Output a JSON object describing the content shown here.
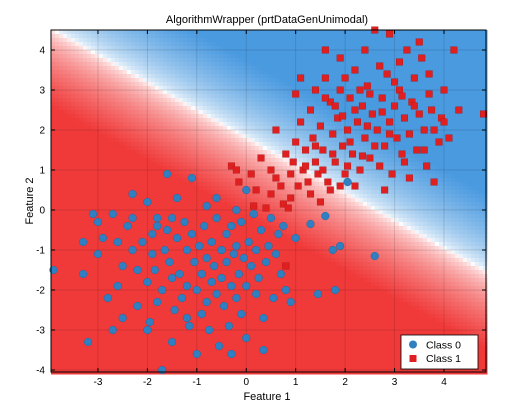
{
  "chart_data": {
    "type": "scatter",
    "title": "AlgorithmWrapper (prtDataGenUnimodal)",
    "xlabel": "Feature 1",
    "ylabel": "Feature 2",
    "xlim": [
      -3.95,
      4.85
    ],
    "ylim": [
      -4.05,
      4.5
    ],
    "xticks": [
      -3,
      -2,
      -1,
      0,
      1,
      2,
      3,
      4
    ],
    "yticks": [
      -4,
      -3,
      -2,
      -1,
      0,
      1,
      2,
      3,
      4
    ],
    "xtick_labels": [
      "-3",
      "-2",
      "-1",
      "0",
      "1",
      "2",
      "3",
      "4"
    ],
    "ytick_labels": [
      "-4",
      "-3",
      "-2",
      "-1",
      "0",
      "1",
      "2",
      "3",
      "4"
    ],
    "grid": true,
    "legend_position": "bottom-right",
    "background": {
      "type": "decision_surface",
      "boundary": "line through approximately (-3.9, 4.5) and (4.8, -1.5)",
      "color_class0": "#4a9ae0",
      "color_class1": "#f03a3a"
    },
    "series": [
      {
        "name": "Class 0",
        "marker": "circle",
        "color": "#2f7fc1",
        "points": [
          [
            -3.9,
            -1.5
          ],
          [
            -3.3,
            -0.8
          ],
          [
            -3.0,
            -0.3
          ],
          [
            -3.1,
            -0.1
          ],
          [
            -3.0,
            -1.1
          ],
          [
            -3.3,
            -1.6
          ],
          [
            -3.2,
            -3.3
          ],
          [
            -2.9,
            -0.7
          ],
          [
            -2.7,
            -0.1
          ],
          [
            -2.6,
            -0.8
          ],
          [
            -2.5,
            -1.4
          ],
          [
            -2.4,
            -0.4
          ],
          [
            -2.3,
            0.4
          ],
          [
            -2.3,
            -1.0
          ],
          [
            -2.2,
            -1.5
          ],
          [
            -2.2,
            -2.4
          ],
          [
            -2.1,
            -0.8
          ],
          [
            -2.0,
            0.2
          ],
          [
            -2.0,
            -1.8
          ],
          [
            -1.9,
            -0.6
          ],
          [
            -1.9,
            -1.1
          ],
          [
            -1.85,
            -1.5
          ],
          [
            -1.8,
            -2.3
          ],
          [
            -1.8,
            -0.2
          ],
          [
            -1.7,
            -4.0
          ],
          [
            -1.7,
            -2.0
          ],
          [
            -1.65,
            -1.0
          ],
          [
            -1.6,
            -0.5
          ],
          [
            -1.55,
            -1.3
          ],
          [
            -1.5,
            -1.7
          ],
          [
            -1.5,
            -0.2
          ],
          [
            -1.45,
            -2.5
          ],
          [
            -1.4,
            -0.7
          ],
          [
            -1.35,
            -1.6
          ],
          [
            -1.3,
            -2.2
          ],
          [
            -1.25,
            -0.3
          ],
          [
            -1.2,
            -1.0
          ],
          [
            -1.2,
            -1.9
          ],
          [
            -1.15,
            -2.9
          ],
          [
            -1.1,
            -0.6
          ],
          [
            -1.05,
            -1.3
          ],
          [
            -1.0,
            -2.0
          ],
          [
            -0.95,
            -0.9
          ],
          [
            -0.9,
            -1.6
          ],
          [
            -0.9,
            -2.6
          ],
          [
            -0.85,
            -0.4
          ],
          [
            -0.8,
            -1.2
          ],
          [
            -0.8,
            -2.3
          ],
          [
            -0.75,
            -3.0
          ],
          [
            -0.7,
            -1.8
          ],
          [
            -0.7,
            -0.8
          ],
          [
            -0.65,
            -1.4
          ],
          [
            -0.6,
            -2.1
          ],
          [
            -0.6,
            -0.2
          ],
          [
            -0.55,
            -3.4
          ],
          [
            -0.5,
            -1.0
          ],
          [
            -0.5,
            -1.7
          ],
          [
            -0.45,
            -2.4
          ],
          [
            -0.4,
            -0.6
          ],
          [
            -0.4,
            -1.3
          ],
          [
            -0.35,
            -2.9
          ],
          [
            -0.3,
            -1.9
          ],
          [
            -0.3,
            -0.4
          ],
          [
            -0.25,
            -1.1
          ],
          [
            -0.2,
            -2.2
          ],
          [
            -0.2,
            -0.9
          ],
          [
            -0.15,
            -1.6
          ],
          [
            -0.1,
            -0.3
          ],
          [
            -0.1,
            -2.6
          ],
          [
            -0.05,
            -1.2
          ],
          [
            0.0,
            -3.2
          ],
          [
            0.0,
            -1.9
          ],
          [
            0.05,
            -0.8
          ],
          [
            0.1,
            -1.4
          ],
          [
            0.15,
            -0.1
          ],
          [
            0.2,
            -2.1
          ],
          [
            0.2,
            -1.0
          ],
          [
            0.25,
            -1.7
          ],
          [
            0.3,
            -0.5
          ],
          [
            0.35,
            -2.7
          ],
          [
            0.4,
            -1.3
          ],
          [
            0.45,
            -0.9
          ],
          [
            0.5,
            -0.2
          ],
          [
            0.55,
            -2.2
          ],
          [
            0.6,
            -1.1
          ],
          [
            0.65,
            -0.6
          ],
          [
            0.7,
            -1.6
          ],
          [
            0.75,
            -0.4
          ],
          [
            0.8,
            -2.0
          ],
          [
            1.0,
            -0.7
          ],
          [
            1.3,
            -0.35
          ],
          [
            1.6,
            -0.15
          ],
          [
            1.75,
            -1.0
          ],
          [
            1.9,
            -0.9
          ],
          [
            2.05,
            0.7
          ],
          [
            2.6,
            -1.15
          ],
          [
            -2.8,
            -2.2
          ],
          [
            -1.6,
            0.9
          ],
          [
            -2.3,
            -0.2
          ],
          [
            -1.95,
            -2.8
          ],
          [
            -1.1,
            0.8
          ],
          [
            -0.6,
            0.3
          ],
          [
            -0.2,
            0.0
          ],
          [
            0.0,
            0.5
          ],
          [
            -2.6,
            -1.9
          ],
          [
            -2.0,
            -3.0
          ],
          [
            -1.5,
            -3.3
          ],
          [
            -0.3,
            -3.6
          ],
          [
            0.9,
            -2.3
          ],
          [
            1.45,
            -2.1
          ],
          [
            1.8,
            -2.0
          ],
          [
            -2.7,
            -3.0
          ],
          [
            -1.0,
            -3.6
          ],
          [
            -0.8,
            0.1
          ],
          [
            -1.4,
            0.3
          ],
          [
            -1.8,
            -0.4
          ],
          [
            -2.5,
            -2.7
          ],
          [
            -1.2,
            -2.7
          ],
          [
            0.35,
            -3.5
          ]
        ]
      },
      {
        "name": "Class 1",
        "marker": "square",
        "color": "#e02020",
        "points": [
          [
            -0.3,
            1.1
          ],
          [
            -0.2,
            1.0
          ],
          [
            -0.15,
            0.7
          ],
          [
            0.1,
            0.9
          ],
          [
            0.15,
            0.1
          ],
          [
            0.2,
            0.5
          ],
          [
            0.3,
            1.3
          ],
          [
            0.4,
            0.05
          ],
          [
            0.5,
            0.4
          ],
          [
            0.6,
            0.8
          ],
          [
            0.75,
            0.15
          ],
          [
            0.8,
            -1.4
          ],
          [
            0.85,
            0.05
          ],
          [
            0.9,
            0.3
          ],
          [
            0.95,
            1.2
          ],
          [
            1.0,
            1.7
          ],
          [
            1.05,
            0.6
          ],
          [
            1.1,
            2.2
          ],
          [
            1.15,
            1.0
          ],
          [
            1.2,
            1.5
          ],
          [
            1.25,
            0.7
          ],
          [
            1.3,
            2.5
          ],
          [
            1.35,
            1.8
          ],
          [
            1.4,
            1.2
          ],
          [
            1.45,
            0.9
          ],
          [
            1.5,
            2.1
          ],
          [
            1.55,
            1.5
          ],
          [
            1.6,
            3.3
          ],
          [
            1.65,
            0.7
          ],
          [
            1.7,
            2.7
          ],
          [
            1.75,
            1.9
          ],
          [
            1.8,
            1.2
          ],
          [
            1.85,
            2.3
          ],
          [
            1.9,
            3.0
          ],
          [
            1.95,
            1.6
          ],
          [
            2.0,
            0.9
          ],
          [
            2.05,
            2.0
          ],
          [
            2.1,
            2.8
          ],
          [
            2.15,
            1.4
          ],
          [
            2.2,
            3.5
          ],
          [
            2.25,
            2.2
          ],
          [
            2.3,
            1.0
          ],
          [
            2.35,
            2.6
          ],
          [
            2.4,
            1.8
          ],
          [
            2.45,
            3.1
          ],
          [
            2.5,
            1.3
          ],
          [
            2.55,
            2.4
          ],
          [
            2.6,
            4.5
          ],
          [
            2.65,
            2.0
          ],
          [
            2.7,
            1.1
          ],
          [
            2.75,
            2.8
          ],
          [
            2.8,
            1.6
          ],
          [
            2.85,
            3.4
          ],
          [
            2.9,
            2.2
          ],
          [
            2.95,
            0.9
          ],
          [
            3.0,
            2.6
          ],
          [
            3.05,
            1.8
          ],
          [
            3.1,
            3.0
          ],
          [
            3.15,
            1.4
          ],
          [
            3.2,
            2.3
          ],
          [
            3.25,
            4.0
          ],
          [
            3.3,
            1.9
          ],
          [
            3.35,
            2.7
          ],
          [
            3.4,
            3.3
          ],
          [
            3.45,
            1.5
          ],
          [
            3.5,
            2.4
          ],
          [
            3.55,
            3.8
          ],
          [
            3.6,
            2.0
          ],
          [
            3.65,
            1.1
          ],
          [
            3.7,
            2.9
          ],
          [
            3.75,
            2.5
          ],
          [
            3.8,
            0.7
          ],
          [
            3.9,
            1.7
          ],
          [
            3.95,
            2.3
          ],
          [
            4.0,
            3.0
          ],
          [
            4.1,
            1.8
          ],
          [
            4.2,
            4.0
          ],
          [
            4.3,
            2.5
          ],
          [
            4.8,
            2.4
          ],
          [
            1.3,
            0.4
          ],
          [
            1.5,
            0.2
          ],
          [
            1.7,
            0.5
          ],
          [
            2.2,
            0.6
          ],
          [
            1.0,
            2.9
          ],
          [
            1.4,
            3.0
          ],
          [
            1.6,
            4.0
          ],
          [
            1.9,
            3.8
          ],
          [
            2.4,
            4.0
          ],
          [
            2.9,
            4.4
          ],
          [
            3.1,
            3.7
          ],
          [
            3.5,
            4.2
          ],
          [
            3.7,
            3.4
          ],
          [
            4.0,
            2.2
          ],
          [
            0.8,
            1.4
          ],
          [
            0.6,
            2.0
          ],
          [
            1.1,
            3.3
          ],
          [
            1.8,
            2.6
          ],
          [
            2.5,
            2.9
          ],
          [
            2.8,
            0.5
          ],
          [
            3.3,
            0.8
          ],
          [
            3.6,
            1.5
          ],
          [
            1.2,
            1.1
          ],
          [
            0.9,
            0.9
          ],
          [
            0.5,
            1.0
          ],
          [
            2.0,
            3.3
          ],
          [
            2.7,
            3.6
          ],
          [
            3.2,
            1.2
          ],
          [
            3.8,
            2.0
          ],
          [
            2.1,
            1.7
          ],
          [
            1.6,
            2.8
          ],
          [
            2.3,
            3.0
          ],
          [
            1.9,
            0.6
          ],
          [
            2.6,
            1.6
          ],
          [
            3.0,
            3.2
          ],
          [
            2.2,
            2.5
          ],
          [
            1.4,
            1.6
          ],
          [
            0.7,
            0.6
          ],
          [
            2.9,
            1.9
          ],
          [
            3.4,
            2.6
          ],
          [
            1.75,
            1.4
          ],
          [
            2.45,
            2.1
          ],
          [
            1.95,
            2.35
          ],
          [
            2.75,
            2.45
          ],
          [
            3.15,
            2.85
          ],
          [
            2.35,
            1.35
          ],
          [
            1.55,
            1.0
          ],
          [
            2.05,
            1.1
          ]
        ]
      }
    ]
  }
}
